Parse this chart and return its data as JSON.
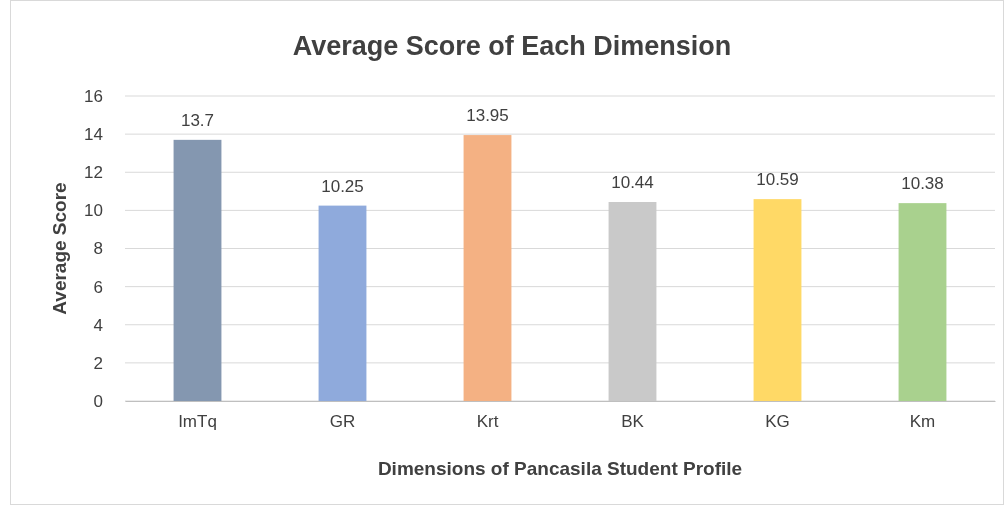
{
  "chart_data": {
    "type": "bar",
    "title": "Average Score of Each Dimension",
    "xlabel": "Dimensions of Pancasila Student Profile",
    "ylabel": "Average Score",
    "categories": [
      "ImTq",
      "GR",
      "Krt",
      "BK",
      "KG",
      "Km"
    ],
    "values": [
      13.7,
      10.25,
      13.95,
      10.44,
      10.59,
      10.38
    ],
    "colors": [
      "#8497b0",
      "#8faadc",
      "#f4b183",
      "#c9c9c9",
      "#ffd966",
      "#a9d18e"
    ],
    "ylim": [
      0,
      16
    ],
    "yticks": [
      0,
      2,
      4,
      6,
      8,
      10,
      12,
      14,
      16
    ],
    "grid": "y",
    "data_labels": true
  }
}
